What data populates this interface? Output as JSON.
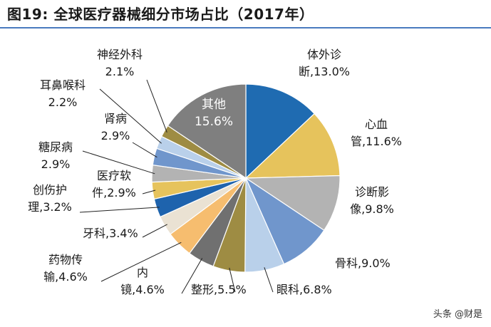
{
  "header": {
    "figure_no": "图19:",
    "title": "全球医疗器械细分市场占比（2017年）"
  },
  "chart_data": {
    "type": "pie",
    "title": "全球医疗器械细分市场占比（2017年）",
    "slices": [
      {
        "label": "体外诊断",
        "line1": "体外诊",
        "line2": "断,13.0%",
        "value": 13.0,
        "color": "#1f6bb1",
        "inside": false,
        "leader": false
      },
      {
        "label": "心血管",
        "line1": "心血",
        "line2": "管,11.6%",
        "value": 11.6,
        "color": "#e6c35c",
        "inside": false,
        "leader": false
      },
      {
        "label": "诊断影像",
        "line1": "诊断影",
        "line2": "像,9.8%",
        "value": 9.8,
        "color": "#b3b3b3",
        "inside": false,
        "leader": false
      },
      {
        "label": "骨科",
        "line1": "骨科,9.0%",
        "line2": "",
        "value": 9.0,
        "color": "#7096cc",
        "inside": false,
        "leader": false
      },
      {
        "label": "眼科",
        "line1": "眼科,6.8%",
        "line2": "",
        "value": 6.8,
        "color": "#b9d0ea",
        "inside": false,
        "leader": true
      },
      {
        "label": "整形",
        "line1": "整形,5.5%",
        "line2": "",
        "value": 5.5,
        "color": "#9e8c43",
        "inside": false,
        "leader": true
      },
      {
        "label": "内镜",
        "line1": "内",
        "line2": "镜,4.6%",
        "value": 4.6,
        "color": "#707070",
        "inside": false,
        "leader": true
      },
      {
        "label": "药物传输",
        "line1": "药物传",
        "line2": "输,4.6%",
        "value": 4.6,
        "color": "#f6bd6f",
        "inside": false,
        "leader": true
      },
      {
        "label": "牙科",
        "line1": "牙科,3.4%",
        "line2": "",
        "value": 3.4,
        "color": "#eae2d3",
        "inside": false,
        "leader": true
      },
      {
        "label": "创伤护理",
        "line1": "创伤护",
        "line2": "理,3.2%",
        "value": 3.2,
        "color": "#1e63ad",
        "inside": false,
        "leader": true
      },
      {
        "label": "医疗软件",
        "line1": "医疗软",
        "line2": "件,2.9%",
        "value": 2.9,
        "color": "#e6c35c",
        "inside": false,
        "leader": true
      },
      {
        "label": "糖尿病",
        "line1": "糖尿病",
        "line2": "2.9%",
        "value": 2.9,
        "color": "#b3b3b3",
        "inside": false,
        "leader": true
      },
      {
        "label": "肾病",
        "line1": "肾病",
        "line2": "2.9%",
        "value": 2.9,
        "color": "#7096cc",
        "inside": false,
        "leader": true
      },
      {
        "label": "耳鼻喉科",
        "line1": "耳鼻喉科",
        "line2": "2.2%",
        "value": 2.2,
        "color": "#b9d0ea",
        "inside": false,
        "leader": true
      },
      {
        "label": "神经外科",
        "line1": "神经外科",
        "line2": "2.1%",
        "value": 2.1,
        "color": "#9e8c43",
        "inside": false,
        "leader": true
      },
      {
        "label": "其他",
        "line1": "其他",
        "line2": "15.6%",
        "value": 15.6,
        "color": "#7f7f7f",
        "inside": true,
        "leader": false
      }
    ]
  },
  "watermark": "头条 @财是"
}
